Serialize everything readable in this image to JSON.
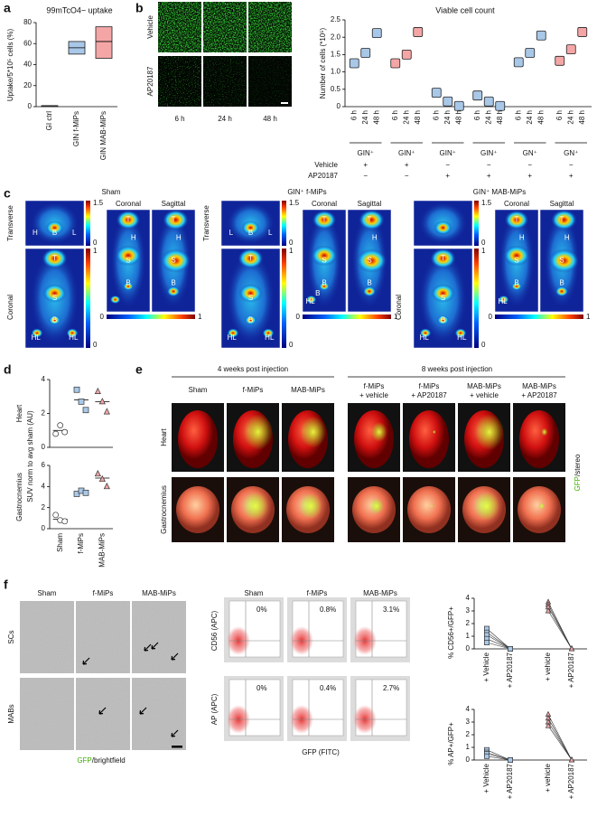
{
  "panel_labels": [
    "a",
    "b",
    "c",
    "d",
    "e",
    "f"
  ],
  "chart_data": [
    {
      "type": "floating-box",
      "title": "99mTcO4− uptake",
      "ylabel": "Uptake/5*10⁵ cells (%)",
      "categories": [
        "GI ctrl",
        "GIN f-MiPs",
        "GIN MAB-MiPs"
      ],
      "low": [
        0,
        50,
        46
      ],
      "mid": [
        null,
        56,
        62
      ],
      "high": [
        1,
        62,
        76
      ],
      "colors": [
        "#333333",
        "#a9c8e8",
        "#f4a6a6"
      ],
      "ylim": [
        0,
        80
      ],
      "yticks": [
        0,
        20,
        40,
        60,
        80
      ]
    },
    {
      "type": "grouped-box",
      "title": "Viable cell count",
      "ylabel": "Number of cells (*10⁵)",
      "timepoints": [
        "6 h",
        "24 h",
        "48 h"
      ],
      "row_labels": [
        "Vehicle",
        "AP20187"
      ],
      "groups": [
        {
          "label": "GIN⁺",
          "vehicle": "+",
          "ap20187": "−",
          "color": "#a9c8e8",
          "values": [
            1.25,
            1.55,
            2.12
          ]
        },
        {
          "label": "GIN⁺",
          "vehicle": "+",
          "ap20187": "−",
          "color": "#f4a6a6",
          "values": [
            1.25,
            1.5,
            2.15
          ]
        },
        {
          "label": "GIN⁺",
          "vehicle": "−",
          "ap20187": "+",
          "color": "#a9c8e8",
          "values": [
            0.4,
            0.15,
            0.02
          ]
        },
        {
          "label": "GIN⁺",
          "vehicle": "−",
          "ap20187": "+",
          "color": "#a9c8e8",
          "values": [
            0.32,
            0.15,
            0.02
          ]
        },
        {
          "label": "GN⁺",
          "vehicle": "−",
          "ap20187": "+",
          "color": "#a9c8e8",
          "values": [
            1.28,
            1.55,
            2.05
          ]
        },
        {
          "label": "GN⁺",
          "vehicle": "−",
          "ap20187": "+",
          "color": "#f4a6a6",
          "values": [
            1.32,
            1.65,
            2.15
          ]
        }
      ],
      "ylim": [
        0,
        2.5
      ],
      "yticks": [
        0,
        0.5,
        {
          "value": 1,
          "label": "1.0"
        },
        1.5,
        {
          "value": 2,
          "label": "2.0"
        },
        2.5
      ]
    },
    {
      "type": "dot",
      "ylabel": "Heart",
      "values": [
        [
          0.8,
          1.3,
          0.9
        ],
        [
          3.4,
          2.7,
          2.2
        ],
        [
          3.3,
          2.7,
          2.1
        ]
      ],
      "means": [
        1.0,
        2.8,
        2.7
      ],
      "markers": [
        "circle",
        "square",
        "triangle"
      ],
      "colors": [
        "#ffffff",
        "#a9c8e8",
        "#f4a6a6"
      ],
      "ylim": [
        0,
        4
      ],
      "yticks": [
        0,
        2,
        4
      ]
    },
    {
      "type": "dot",
      "ylabel": "Gastrocnemius",
      "categories": [
        "Sham",
        "f-MiPs",
        "MAB-MiPs"
      ],
      "values": [
        [
          1.3,
          0.8,
          0.7
        ],
        [
          3.3,
          3.6,
          3.4
        ],
        [
          5.2,
          4.7,
          4.0
        ]
      ],
      "means": [
        0.9,
        3.4,
        4.8
      ],
      "markers": [
        "circle",
        "square",
        "triangle"
      ],
      "colors": [
        "#ffffff",
        "#a9c8e8",
        "#f4a6a6"
      ],
      "ylim": [
        0,
        6
      ],
      "yticks": [
        0,
        2,
        4,
        6
      ]
    },
    {
      "type": "paired-line",
      "ylabel": "% CD56+/GFP+",
      "categories": [
        "+ Vehicle",
        "+ AP20187",
        "+ vehicle",
        "+ AP20187"
      ],
      "groups": [
        {
          "color": "#a9c8e8",
          "marker": "square",
          "pairs": [
            [
              1.6,
              0
            ],
            [
              1.3,
              0
            ],
            [
              1.1,
              0
            ],
            [
              0.8,
              0
            ],
            [
              0.5,
              0
            ]
          ]
        },
        {
          "color": "#f4a6a6",
          "marker": "triangle",
          "pairs": [
            [
              3.7,
              0
            ],
            [
              3.5,
              0
            ],
            [
              3.3,
              0
            ],
            [
              3.0,
              0
            ]
          ]
        }
      ],
      "ylim": [
        0,
        4
      ],
      "yticks": [
        0,
        1,
        2,
        3,
        4
      ]
    },
    {
      "type": "paired-line",
      "ylabel": "% AP+/GFP+",
      "categories": [
        "+ Vehicle",
        "+ AP20187",
        "+ vehicle",
        "+ AP20187"
      ],
      "groups": [
        {
          "color": "#a9c8e8",
          "marker": "square",
          "pairs": [
            [
              0.8,
              0
            ],
            [
              0.6,
              0
            ],
            [
              0.5,
              0
            ],
            [
              0.3,
              0
            ]
          ]
        },
        {
          "color": "#f4a6a6",
          "marker": "triangle",
          "pairs": [
            [
              3.6,
              0
            ],
            [
              3.3,
              0
            ],
            [
              3.0,
              0
            ],
            [
              2.7,
              0
            ]
          ]
        }
      ],
      "ylim": [
        0,
        4
      ],
      "yticks": [
        0,
        1,
        2,
        3,
        4
      ]
    }
  ],
  "panel_b_images": {
    "rows": [
      "Vehicle",
      "AP20187"
    ],
    "columns": [
      "6 h",
      "24 h",
      "48 h"
    ]
  },
  "panel_c": {
    "transverse_scale": [
      1.5,
      0
    ],
    "coronal_scale": [
      1,
      0
    ],
    "horizontal_scale": [
      0,
      1
    ],
    "subpanels": [
      {
        "title": "Sham",
        "side_labels": {
          "transverse": "Transverse",
          "coronal": "Coronal"
        },
        "views": [
          "Coronal",
          "Sagittal"
        ],
        "transverse": [
          "H",
          "B",
          "L"
        ],
        "coronal_small": [
          "T",
          "S",
          "B",
          "HL",
          "HL"
        ],
        "coronal": [
          "T",
          "H",
          "S",
          "B"
        ],
        "sagittal": [
          "T",
          "H",
          "S",
          "B"
        ]
      },
      {
        "title": "GIN⁺ f-MiPs",
        "side_labels": {
          "transverse": "Transverse"
        },
        "views": [
          "Coronal",
          "Sagittal"
        ],
        "transverse": [
          "L",
          "B",
          "L"
        ],
        "coronal_small": [
          "T",
          "S",
          "B",
          "HL",
          "HL"
        ],
        "coronal": [
          "T",
          "S",
          "B",
          "HL",
          "B"
        ],
        "sagittal": [
          "T",
          "H",
          "S",
          "B"
        ]
      },
      {
        "title": "GIN⁺ MAB-MiPs",
        "side_labels": {
          "coronal": "Coronal"
        },
        "views": [
          "Coronal",
          "Sagittal"
        ],
        "transverse": [],
        "coronal_small": [
          "T",
          "S",
          "HL",
          "B",
          "HL"
        ],
        "coronal": [
          "T",
          "H",
          "S",
          "HL",
          "B"
        ],
        "sagittal": [
          "T",
          "H",
          "S",
          "B"
        ]
      }
    ]
  },
  "panel_d": {
    "ylabel": "SUV norm to avg sham (AU)"
  },
  "panel_e": {
    "headers": [
      "4 weeks post injection",
      "8 weeks post injection"
    ],
    "columns": [
      [
        "Sham"
      ],
      [
        "f-MiPs"
      ],
      [
        "MAB-MiPs"
      ],
      [
        "f-MiPs",
        "+ vehicle"
      ],
      [
        "f-MiPs",
        "+ AP20187"
      ],
      [
        "MAB-MiPs",
        "+ vehicle"
      ],
      [
        "MAB-MiPs",
        "+ AP20187"
      ]
    ],
    "rows": [
      "Heart",
      "Gastrocnemius"
    ],
    "side_label": [
      "GFP",
      "/stereo"
    ]
  },
  "panel_f_images": {
    "columns": [
      "Sham",
      "f-MiPs",
      "MAB-MiPs"
    ],
    "rows": [
      "SCs",
      "MABs"
    ],
    "caption": [
      "GFP",
      "/brightfield"
    ]
  },
  "panel_f_flow": {
    "columns": [
      "Sham",
      "f-MiPs",
      "MAB-MiPs"
    ],
    "ylabels": [
      "CD56 (APC)",
      "AP (APC)"
    ],
    "xlabel": "GFP (FITC)",
    "percents": [
      [
        "0%",
        "0.8%",
        "3.1%"
      ],
      [
        "0%",
        "0.4%",
        "2.7%"
      ]
    ]
  }
}
